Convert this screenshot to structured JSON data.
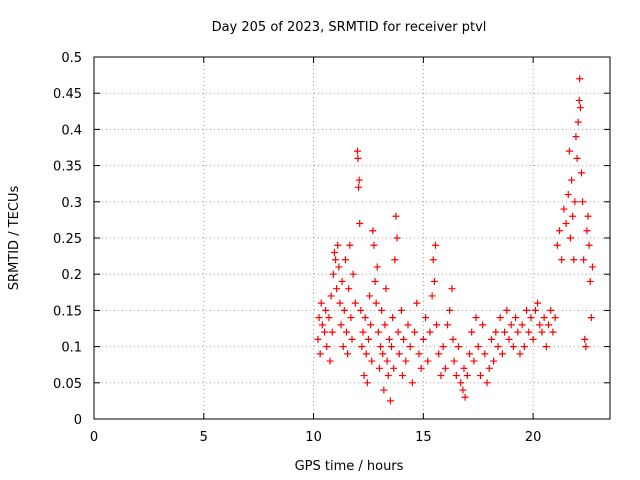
{
  "chart_data": {
    "type": "scatter",
    "title": "Day 205 of 2023, SRMTID for receiver ptvl",
    "xlabel": "GPS time / hours",
    "ylabel": "SRMTID / TECUs",
    "xlim": [
      0,
      23.5
    ],
    "ylim": [
      0,
      0.5
    ],
    "xticks": [
      "0",
      "5",
      "10",
      "15",
      "20"
    ],
    "yticks": [
      "0",
      "0.05",
      "0.1",
      "0.15",
      "0.2",
      "0.25",
      "0.3",
      "0.35",
      "0.4",
      "0.45",
      "0.5"
    ],
    "grid": true,
    "marker": "+",
    "color": "#ff0000",
    "series": [
      {
        "name": "SRMTID",
        "points": [
          [
            10.2,
            0.11
          ],
          [
            10.25,
            0.14
          ],
          [
            10.3,
            0.09
          ],
          [
            10.35,
            0.16
          ],
          [
            10.4,
            0.13
          ],
          [
            10.5,
            0.12
          ],
          [
            10.55,
            0.15
          ],
          [
            10.6,
            0.1
          ],
          [
            10.7,
            0.14
          ],
          [
            10.75,
            0.08
          ],
          [
            10.8,
            0.17
          ],
          [
            10.85,
            0.12
          ],
          [
            10.9,
            0.2
          ],
          [
            10.95,
            0.23
          ],
          [
            11.0,
            0.22
          ],
          [
            11.05,
            0.18
          ],
          [
            11.1,
            0.24
          ],
          [
            11.15,
            0.21
          ],
          [
            11.2,
            0.16
          ],
          [
            11.25,
            0.13
          ],
          [
            11.3,
            0.19
          ],
          [
            11.35,
            0.1
          ],
          [
            11.4,
            0.15
          ],
          [
            11.45,
            0.22
          ],
          [
            11.5,
            0.12
          ],
          [
            11.55,
            0.09
          ],
          [
            11.6,
            0.18
          ],
          [
            11.65,
            0.24
          ],
          [
            11.7,
            0.14
          ],
          [
            11.75,
            0.11
          ],
          [
            11.8,
            0.2
          ],
          [
            11.9,
            0.16
          ],
          [
            12.0,
            0.37
          ],
          [
            12.02,
            0.36
          ],
          [
            12.05,
            0.32
          ],
          [
            12.08,
            0.33
          ],
          [
            12.1,
            0.27
          ],
          [
            12.15,
            0.15
          ],
          [
            12.2,
            0.1
          ],
          [
            12.25,
            0.12
          ],
          [
            12.3,
            0.06
          ],
          [
            12.35,
            0.14
          ],
          [
            12.4,
            0.09
          ],
          [
            12.45,
            0.05
          ],
          [
            12.5,
            0.11
          ],
          [
            12.55,
            0.17
          ],
          [
            12.6,
            0.13
          ],
          [
            12.65,
            0.08
          ],
          [
            12.7,
            0.26
          ],
          [
            12.75,
            0.24
          ],
          [
            12.8,
            0.19
          ],
          [
            12.85,
            0.16
          ],
          [
            12.9,
            0.21
          ],
          [
            12.95,
            0.12
          ],
          [
            13.0,
            0.07
          ],
          [
            13.05,
            0.1
          ],
          [
            13.1,
            0.15
          ],
          [
            13.15,
            0.09
          ],
          [
            13.2,
            0.04
          ],
          [
            13.25,
            0.13
          ],
          [
            13.3,
            0.18
          ],
          [
            13.35,
            0.08
          ],
          [
            13.4,
            0.06
          ],
          [
            13.45,
            0.11
          ],
          [
            13.5,
            0.025
          ],
          [
            13.55,
            0.1
          ],
          [
            13.6,
            0.14
          ],
          [
            13.65,
            0.07
          ],
          [
            13.7,
            0.22
          ],
          [
            13.75,
            0.28
          ],
          [
            13.8,
            0.25
          ],
          [
            13.85,
            0.12
          ],
          [
            13.9,
            0.09
          ],
          [
            14.0,
            0.15
          ],
          [
            14.05,
            0.06
          ],
          [
            14.1,
            0.11
          ],
          [
            14.2,
            0.08
          ],
          [
            14.3,
            0.13
          ],
          [
            14.4,
            0.1
          ],
          [
            14.5,
            0.05
          ],
          [
            14.6,
            0.12
          ],
          [
            14.7,
            0.16
          ],
          [
            14.8,
            0.09
          ],
          [
            14.9,
            0.07
          ],
          [
            15.0,
            0.11
          ],
          [
            15.1,
            0.14
          ],
          [
            15.2,
            0.08
          ],
          [
            15.3,
            0.12
          ],
          [
            15.4,
            0.17
          ],
          [
            15.45,
            0.22
          ],
          [
            15.5,
            0.19
          ],
          [
            15.55,
            0.24
          ],
          [
            15.6,
            0.13
          ],
          [
            15.7,
            0.09
          ],
          [
            15.8,
            0.06
          ],
          [
            15.9,
            0.1
          ],
          [
            16.0,
            0.07
          ],
          [
            16.1,
            0.13
          ],
          [
            16.2,
            0.15
          ],
          [
            16.3,
            0.18
          ],
          [
            16.35,
            0.11
          ],
          [
            16.4,
            0.08
          ],
          [
            16.5,
            0.06
          ],
          [
            16.6,
            0.1
          ],
          [
            16.7,
            0.05
          ],
          [
            16.8,
            0.04
          ],
          [
            16.85,
            0.07
          ],
          [
            16.9,
            0.03
          ],
          [
            17.0,
            0.06
          ],
          [
            17.1,
            0.09
          ],
          [
            17.2,
            0.12
          ],
          [
            17.3,
            0.08
          ],
          [
            17.4,
            0.14
          ],
          [
            17.5,
            0.1
          ],
          [
            17.6,
            0.06
          ],
          [
            17.7,
            0.13
          ],
          [
            17.8,
            0.09
          ],
          [
            17.9,
            0.05
          ],
          [
            18.0,
            0.07
          ],
          [
            18.1,
            0.11
          ],
          [
            18.2,
            0.08
          ],
          [
            18.3,
            0.12
          ],
          [
            18.4,
            0.1
          ],
          [
            18.5,
            0.14
          ],
          [
            18.6,
            0.09
          ],
          [
            18.7,
            0.12
          ],
          [
            18.8,
            0.15
          ],
          [
            18.9,
            0.11
          ],
          [
            19.0,
            0.13
          ],
          [
            19.1,
            0.1
          ],
          [
            19.2,
            0.14
          ],
          [
            19.3,
            0.12
          ],
          [
            19.4,
            0.09
          ],
          [
            19.5,
            0.13
          ],
          [
            19.6,
            0.1
          ],
          [
            19.7,
            0.15
          ],
          [
            19.8,
            0.12
          ],
          [
            19.9,
            0.14
          ],
          [
            20.0,
            0.11
          ],
          [
            20.1,
            0.15
          ],
          [
            20.2,
            0.16
          ],
          [
            20.3,
            0.13
          ],
          [
            20.4,
            0.12
          ],
          [
            20.5,
            0.14
          ],
          [
            20.6,
            0.1
          ],
          [
            20.7,
            0.13
          ],
          [
            20.8,
            0.15
          ],
          [
            20.9,
            0.12
          ],
          [
            21.0,
            0.14
          ],
          [
            21.1,
            0.24
          ],
          [
            21.2,
            0.26
          ],
          [
            21.3,
            0.22
          ],
          [
            21.4,
            0.29
          ],
          [
            21.5,
            0.27
          ],
          [
            21.6,
            0.31
          ],
          [
            21.65,
            0.37
          ],
          [
            21.7,
            0.25
          ],
          [
            21.75,
            0.33
          ],
          [
            21.8,
            0.28
          ],
          [
            21.85,
            0.22
          ],
          [
            21.9,
            0.3
          ],
          [
            21.95,
            0.39
          ],
          [
            22.0,
            0.36
          ],
          [
            22.05,
            0.41
          ],
          [
            22.1,
            0.44
          ],
          [
            22.12,
            0.47
          ],
          [
            22.15,
            0.43
          ],
          [
            22.2,
            0.34
          ],
          [
            22.25,
            0.3
          ],
          [
            22.3,
            0.22
          ],
          [
            22.35,
            0.11
          ],
          [
            22.4,
            0.1
          ],
          [
            22.45,
            0.26
          ],
          [
            22.5,
            0.28
          ],
          [
            22.55,
            0.24
          ],
          [
            22.6,
            0.19
          ],
          [
            22.65,
            0.14
          ],
          [
            22.7,
            0.21
          ]
        ]
      }
    ]
  }
}
